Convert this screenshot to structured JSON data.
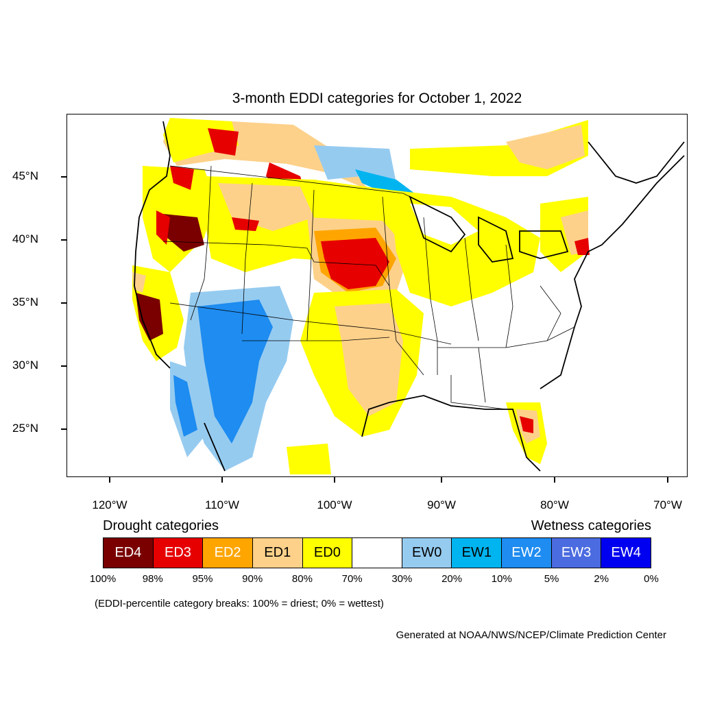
{
  "title": "3-month EDDI categories for October 1, 2022",
  "map": {
    "y_axis": [
      "45°N",
      "40°N",
      "35°N",
      "30°N",
      "25°N"
    ],
    "x_axis": [
      "120°W",
      "110°W",
      "100°W",
      "90°W",
      "80°W",
      "70°W"
    ]
  },
  "legend": {
    "drought_heading": "Drought categories",
    "wetness_heading": "Wetness categories",
    "categories": [
      {
        "label": "ED4",
        "color": "#7a0000",
        "text_color": "#ffffff"
      },
      {
        "label": "ED3",
        "color": "#e60000",
        "text_color": "#ffffff"
      },
      {
        "label": "ED2",
        "color": "#ffa500",
        "text_color": "#ffffff"
      },
      {
        "label": "ED1",
        "color": "#fdd18a",
        "text_color": "#000000"
      },
      {
        "label": "ED0",
        "color": "#ffff00",
        "text_color": "#000000"
      },
      {
        "label": "",
        "color": "#ffffff",
        "text_color": "#000000"
      },
      {
        "label": "EW0",
        "color": "#96cbf0",
        "text_color": "#000000"
      },
      {
        "label": "EW1",
        "color": "#00b4f0",
        "text_color": "#000000"
      },
      {
        "label": "EW2",
        "color": "#1e8cf0",
        "text_color": "#ffffff"
      },
      {
        "label": "EW3",
        "color": "#4b6be0",
        "text_color": "#ffffff"
      },
      {
        "label": "EW4",
        "color": "#0000f0",
        "text_color": "#ffffff"
      }
    ],
    "percent_breaks": [
      "100%",
      "98%",
      "95%",
      "90%",
      "80%",
      "70%",
      "30%",
      "20%",
      "10%",
      "5%",
      "2%",
      "0%"
    ]
  },
  "note": "(EDDI-percentile category breaks: 100% = driest; 0% = wettest)",
  "credit": "Generated at NOAA/NWS/NCEP/Climate Prediction Center"
}
